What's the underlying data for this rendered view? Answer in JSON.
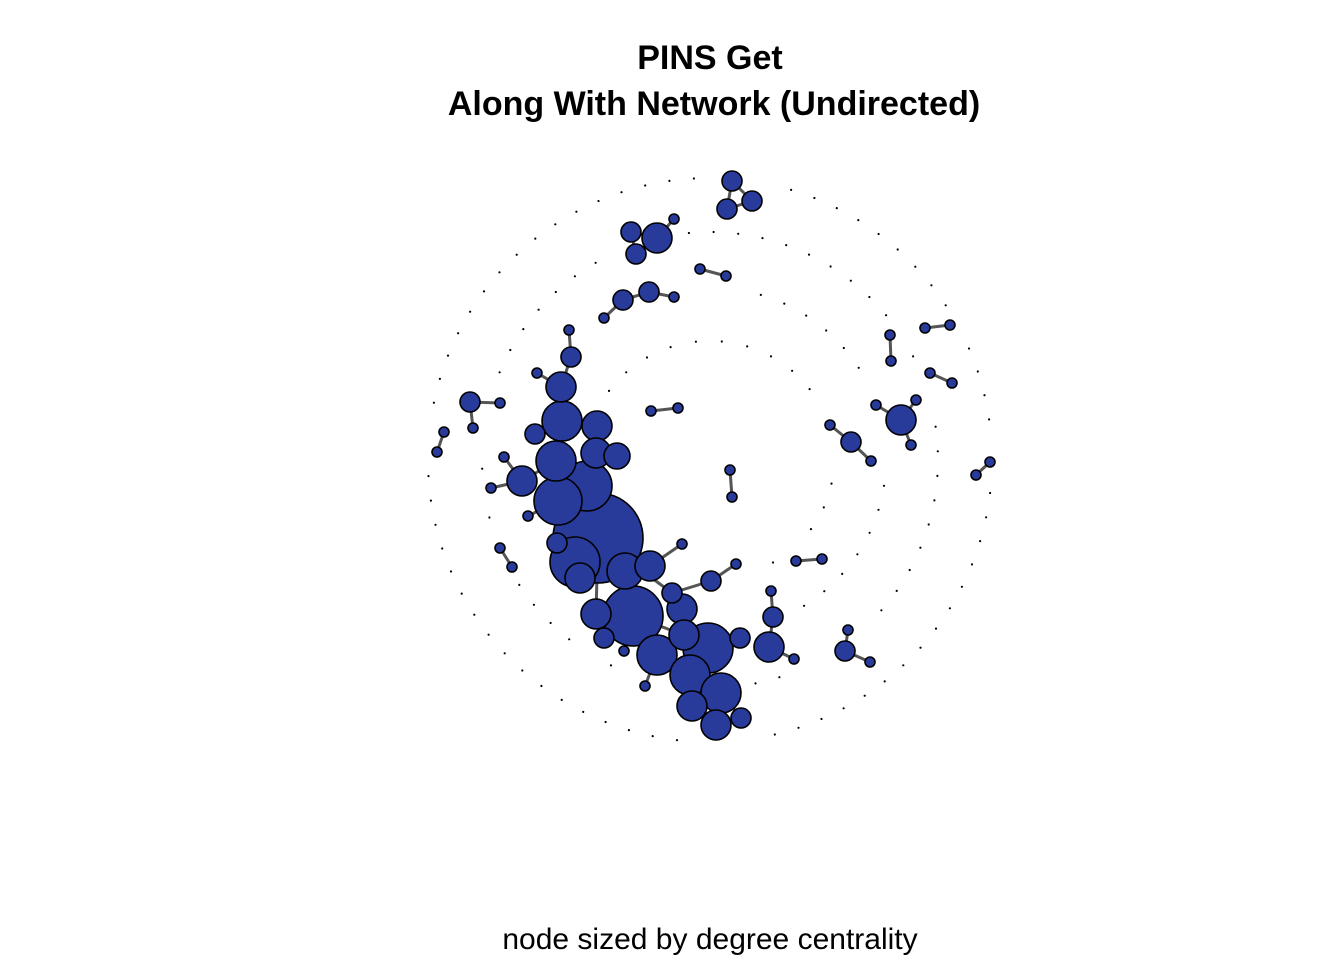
{
  "figure": {
    "title_line1": "PINS Get",
    "title_line2": "Along With Network (Undirected)",
    "caption": "node sized by degree centrality"
  },
  "style": {
    "node_fill": "#283b9b",
    "node_stroke": "#000000",
    "edge_color": "#555555",
    "isolate_color": "#000000"
  }
}
